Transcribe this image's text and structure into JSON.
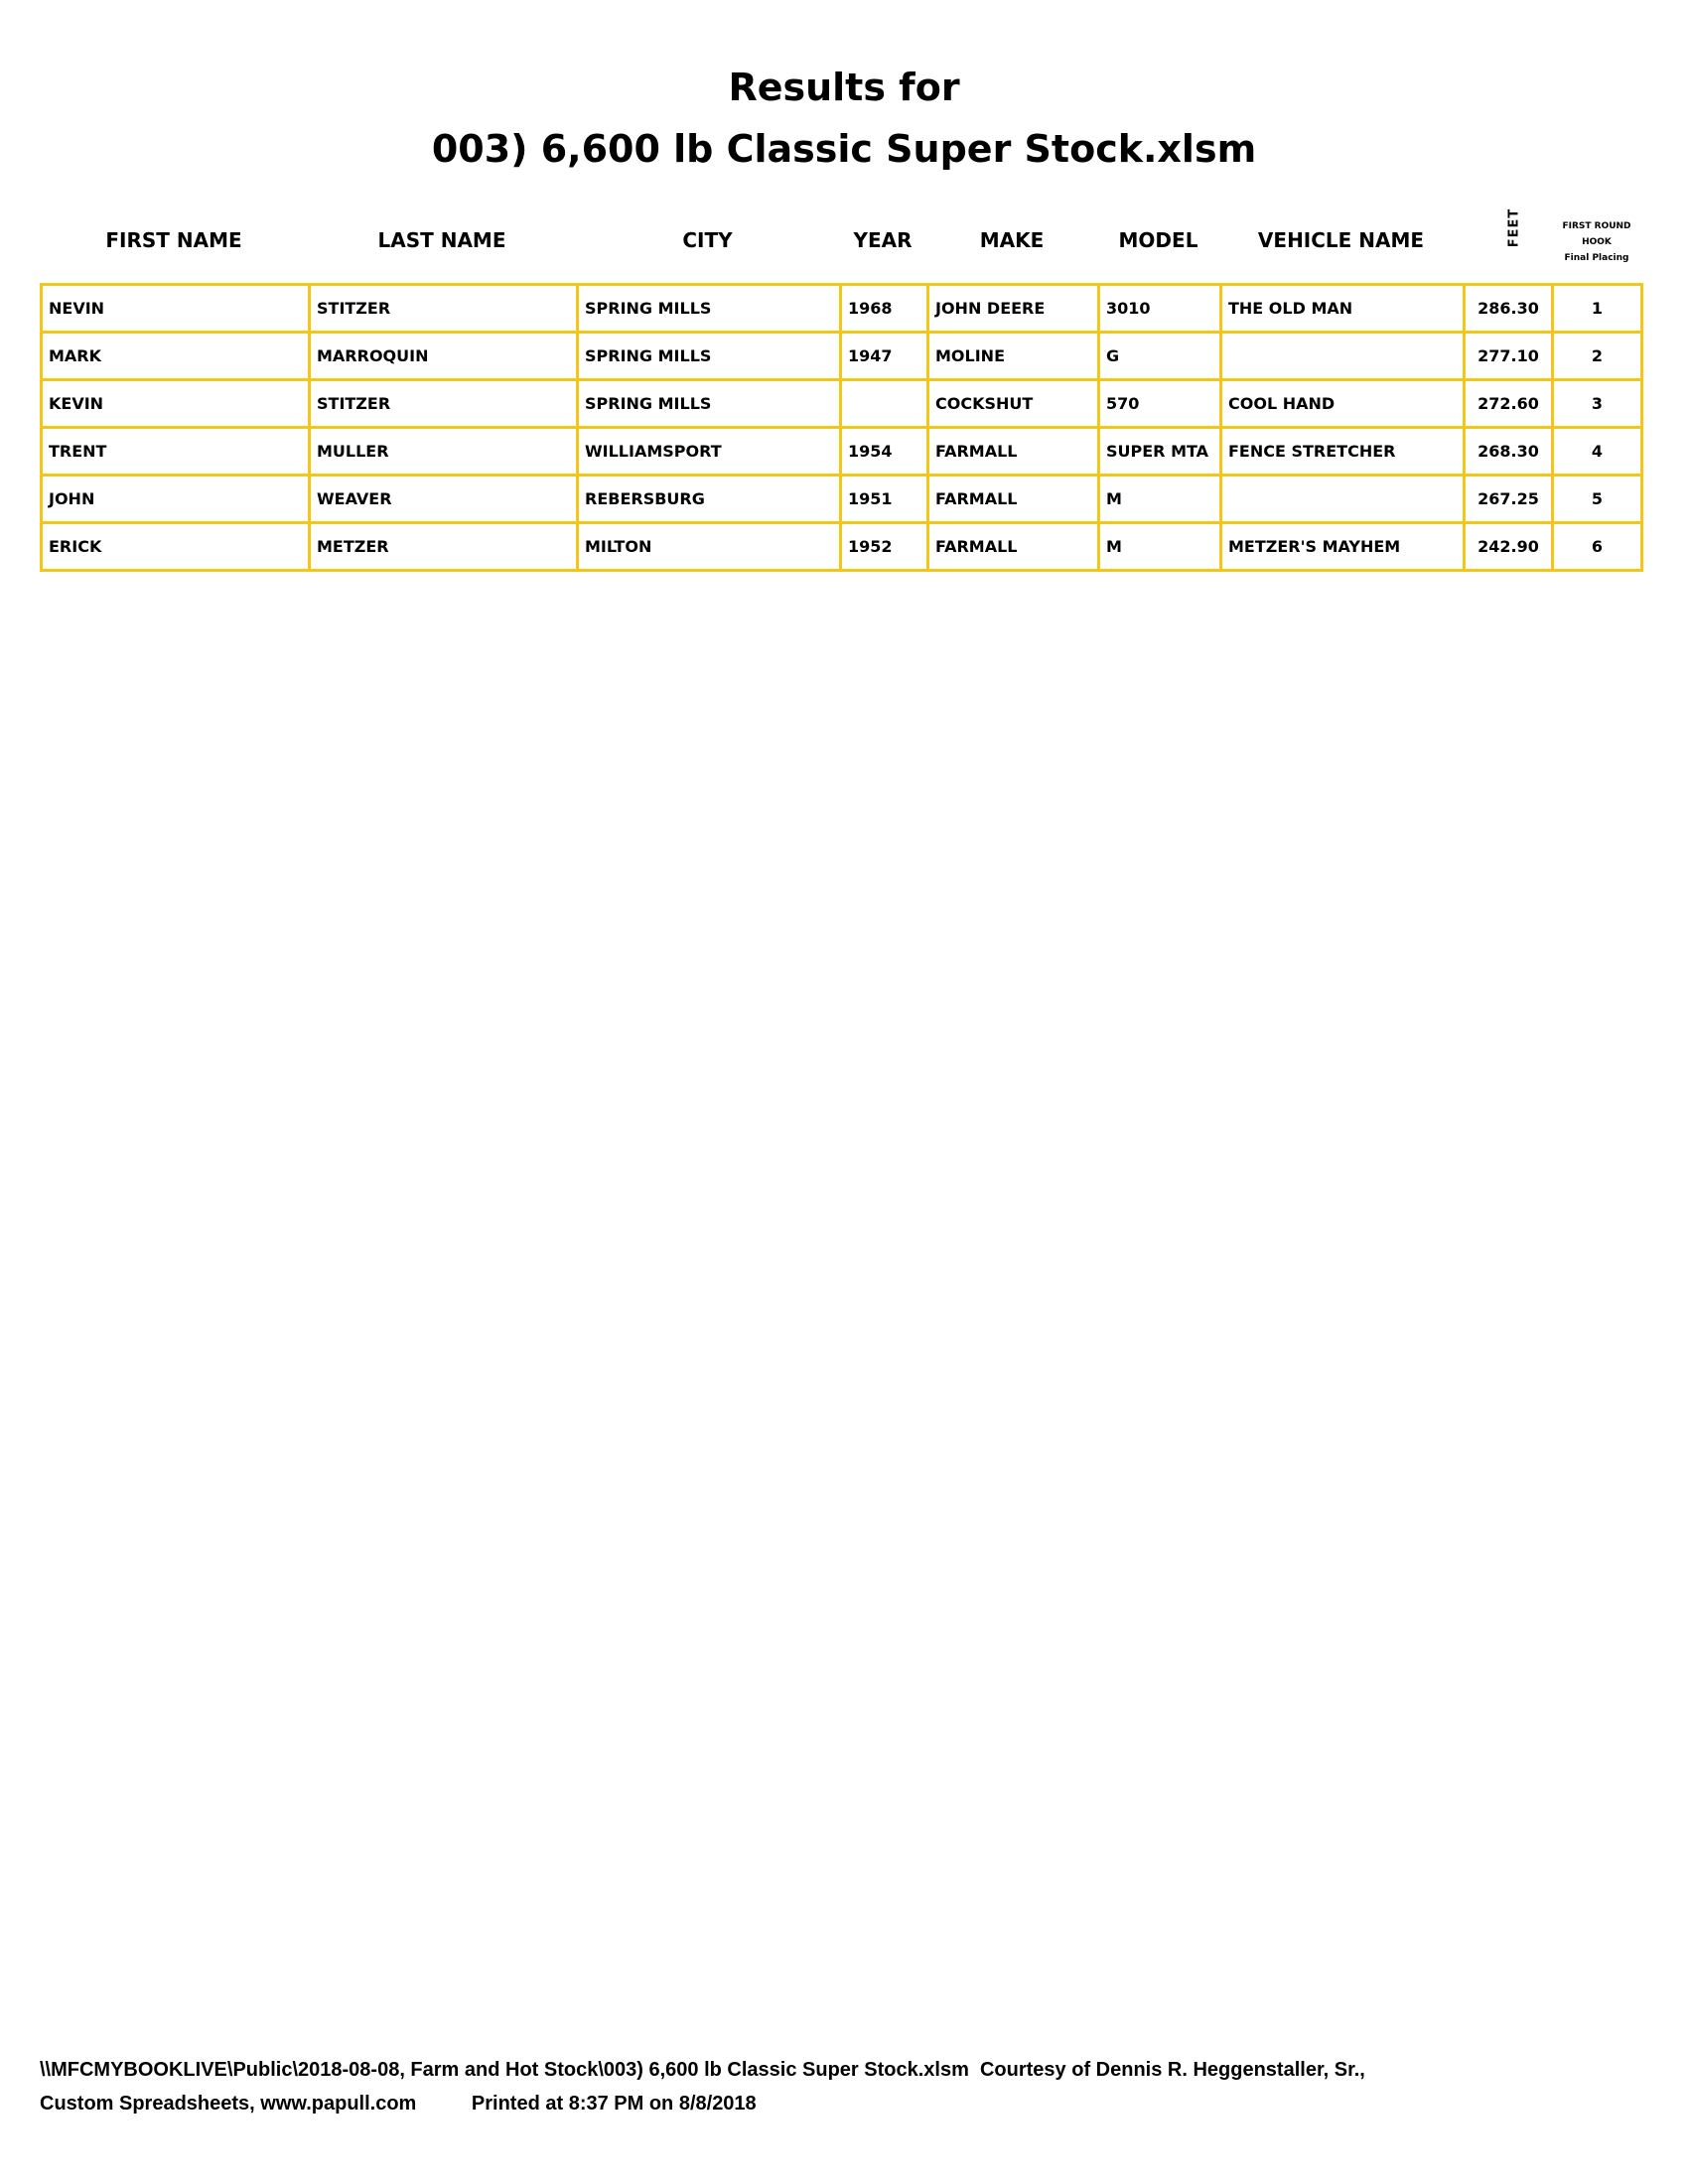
{
  "title": {
    "line1": "Results for",
    "line2": "003) 6,600 lb Classic Super Stock.xlsm"
  },
  "headers": {
    "first_name": "FIRST NAME",
    "last_name": "LAST NAME",
    "city": "CITY",
    "year": "YEAR",
    "make": "MAKE",
    "model": "MODEL",
    "vehicle_name": "VEHICLE NAME",
    "feet": "FEET",
    "hook_line1": "FIRST ROUND",
    "hook_line2": "HOOK",
    "hook_line3": "Final Placing"
  },
  "accent_color": "#f5c518",
  "rows": [
    [
      "NEVIN",
      "STITZER",
      "SPRING MILLS",
      "1968",
      "JOHN DEERE",
      "3010",
      "THE OLD MAN",
      "286.30",
      "1"
    ],
    [
      "MARK",
      "MARROQUIN",
      "SPRING MILLS",
      "1947",
      "MOLINE",
      "G",
      "",
      "277.10",
      "2"
    ],
    [
      "KEVIN",
      "STITZER",
      "SPRING MILLS",
      "",
      "COCKSHUT",
      "570",
      "COOL HAND",
      "272.60",
      "3"
    ],
    [
      "TRENT",
      "MULLER",
      "WILLIAMSPORT",
      "1954",
      "FARMALL",
      "SUPER MTA",
      "FENCE STRETCHER",
      "268.30",
      "4"
    ],
    [
      "JOHN",
      "WEAVER",
      "REBERSBURG",
      "1951",
      "FARMALL",
      "M",
      "",
      "267.25",
      "5"
    ],
    [
      "ERICK",
      "METZER",
      "MILTON",
      "1952",
      "FARMALL",
      "M",
      "METZER'S MAYHEM",
      "242.90",
      "6"
    ]
  ],
  "footer": {
    "line1": "\\\\MFCMYBOOKLIVE\\Public\\2018-08-08, Farm and Hot Stock\\003) 6,600 lb Classic Super Stock.xlsm  Courtesy of Dennis R. Heggenstaller, Sr.,",
    "line2": "Custom Spreadsheets, www.papull.com          Printed at 8:37 PM on 8/8/2018"
  }
}
